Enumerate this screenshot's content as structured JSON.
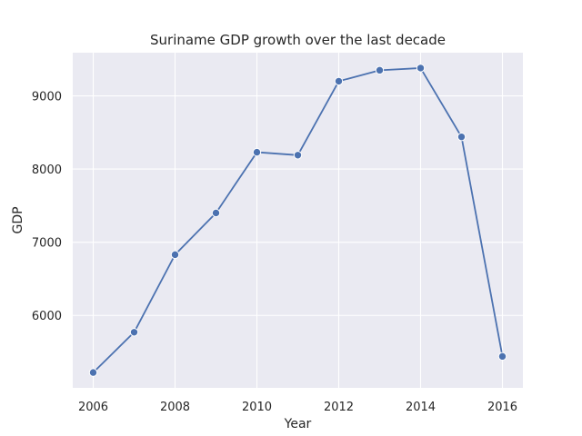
{
  "chart_data": {
    "type": "line",
    "title": "Suriname GDP growth over the last decade",
    "xlabel": "Year",
    "ylabel": "GDP",
    "x": [
      2006,
      2007,
      2008,
      2009,
      2010,
      2011,
      2012,
      2013,
      2014,
      2015,
      2016
    ],
    "series": [
      {
        "values": [
          5220,
          5770,
          6830,
          7400,
          8230,
          8190,
          9200,
          9350,
          9380,
          8440,
          5440
        ]
      }
    ],
    "xlim": [
      2005.5,
      2016.5
    ],
    "ylim": [
      5010,
      9590
    ],
    "xticks": [
      2006,
      2008,
      2010,
      2012,
      2014,
      2016
    ],
    "yticks": [
      6000,
      7000,
      8000,
      9000
    ],
    "grid": true,
    "colors": {
      "background": "#eaeaf2",
      "grid": "#ffffff",
      "line": "#4c72b0"
    }
  }
}
